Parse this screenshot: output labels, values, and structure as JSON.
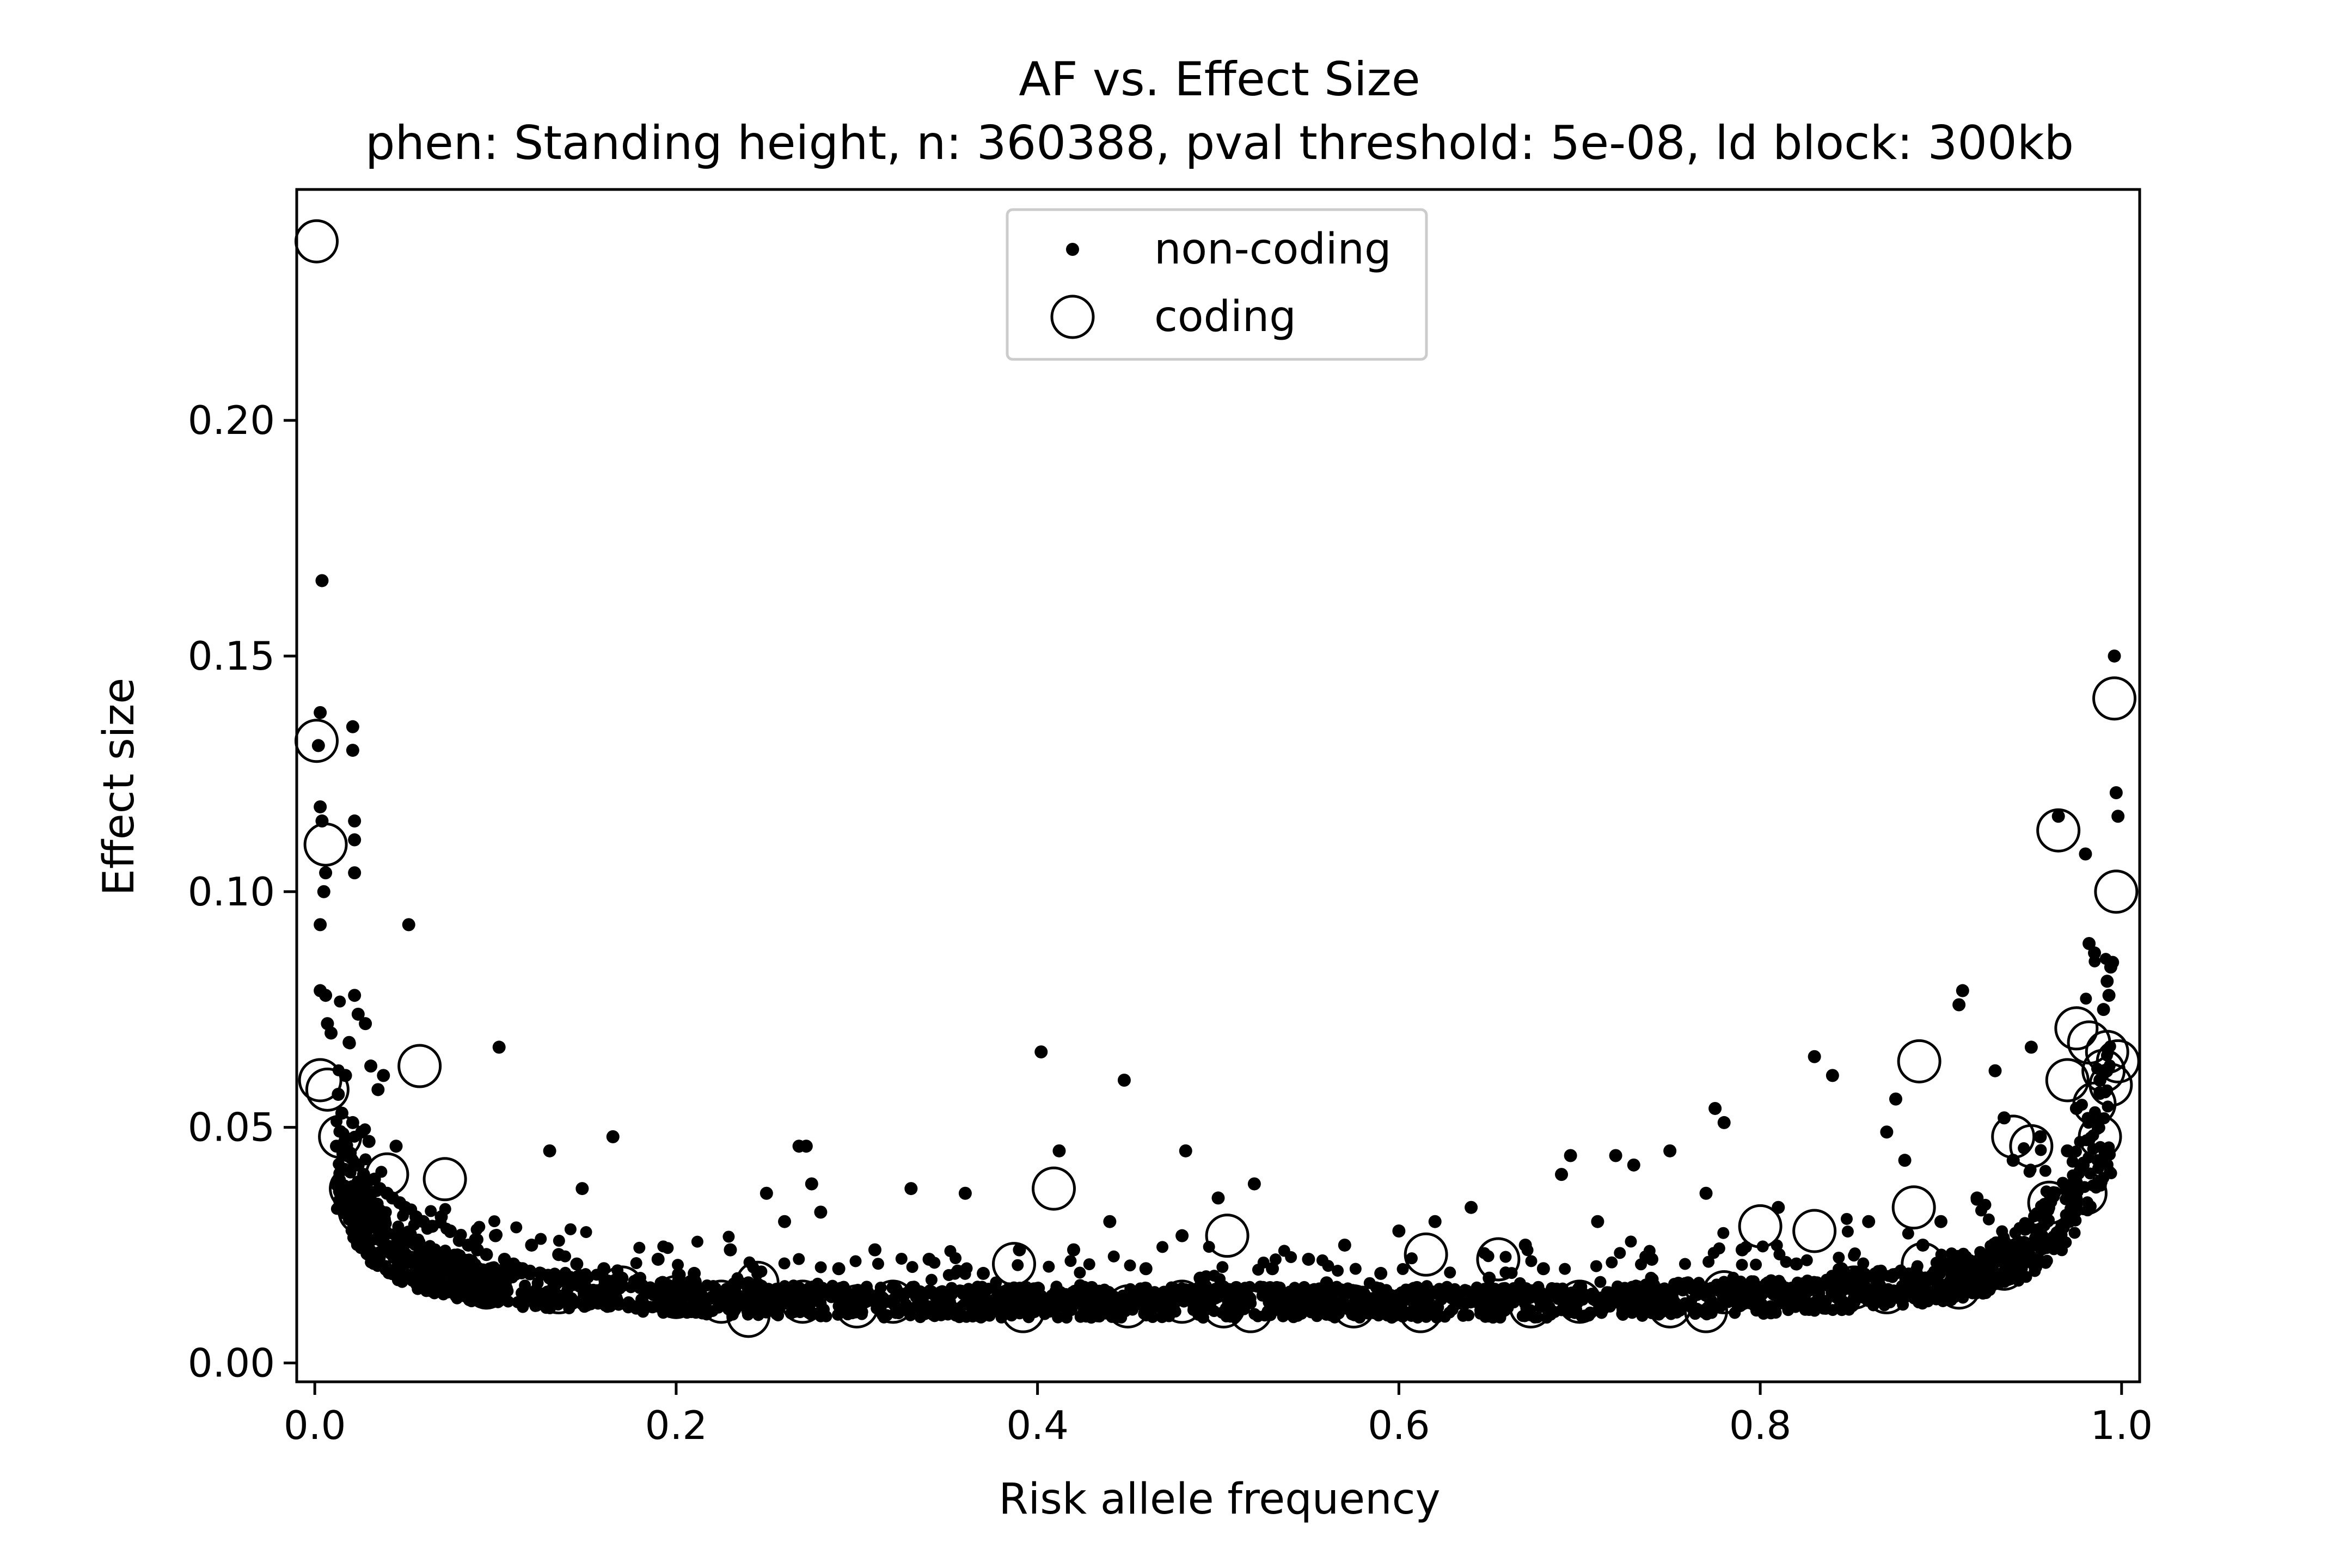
{
  "chart_data": {
    "type": "scatter",
    "title": "AF vs. Effect Size",
    "subtitle": "phen: Standing height, n: 360388, pval threshold: 5e-08, ld block: 300kb",
    "xlabel": "Risk allele frequency",
    "ylabel": "Effect size",
    "xlim": [
      -0.01,
      1.01
    ],
    "ylim": [
      -0.004,
      0.249
    ],
    "xticks": [
      0.0,
      0.2,
      0.4,
      0.6,
      0.8,
      1.0
    ],
    "xtick_labels": [
      "0.0",
      "0.2",
      "0.4",
      "0.6",
      "0.8",
      "1.0"
    ],
    "yticks": [
      0.0,
      0.05,
      0.1,
      0.15,
      0.2
    ],
    "ytick_labels": [
      "0.00",
      "0.05",
      "0.10",
      "0.15",
      "0.20"
    ],
    "grid": false,
    "legend_position": "top-center",
    "colors": {
      "marker": "#000000",
      "background": "#ffffff"
    },
    "series": [
      {
        "name": "non-coding",
        "marker": "dot",
        "points": [
          [
            0.004,
            0.166
          ],
          [
            0.003,
            0.138
          ],
          [
            0.002,
            0.131
          ],
          [
            0.021,
            0.135
          ],
          [
            0.021,
            0.13
          ],
          [
            0.022,
            0.115
          ],
          [
            0.022,
            0.111
          ],
          [
            0.003,
            0.118
          ],
          [
            0.004,
            0.115
          ],
          [
            0.006,
            0.104
          ],
          [
            0.005,
            0.1
          ],
          [
            0.003,
            0.093
          ],
          [
            0.022,
            0.104
          ],
          [
            0.052,
            0.093
          ],
          [
            0.102,
            0.067
          ],
          [
            0.003,
            0.079
          ],
          [
            0.006,
            0.078
          ],
          [
            0.007,
            0.072
          ],
          [
            0.009,
            0.07
          ],
          [
            0.019,
            0.068
          ],
          [
            0.022,
            0.078
          ],
          [
            0.024,
            0.074
          ],
          [
            0.028,
            0.072
          ],
          [
            0.031,
            0.063
          ],
          [
            0.017,
            0.061
          ],
          [
            0.035,
            0.058
          ],
          [
            0.038,
            0.061
          ],
          [
            0.013,
            0.057
          ],
          [
            0.015,
            0.053
          ],
          [
            0.021,
            0.051
          ],
          [
            0.026,
            0.049
          ],
          [
            0.03,
            0.047
          ],
          [
            0.045,
            0.046
          ],
          [
            0.012,
            0.046
          ],
          [
            0.018,
            0.044
          ],
          [
            0.024,
            0.042
          ],
          [
            0.027,
            0.04
          ],
          [
            0.033,
            0.039
          ],
          [
            0.036,
            0.037
          ],
          [
            0.04,
            0.036
          ],
          [
            0.043,
            0.035
          ],
          [
            0.047,
            0.034
          ],
          [
            0.05,
            0.033
          ],
          [
            0.056,
            0.031
          ],
          [
            0.06,
            0.03
          ],
          [
            0.065,
            0.029
          ],
          [
            0.07,
            0.031
          ],
          [
            0.075,
            0.028
          ],
          [
            0.08,
            0.026
          ],
          [
            0.085,
            0.025
          ],
          [
            0.09,
            0.024
          ],
          [
            0.095,
            0.023
          ],
          [
            0.1,
            0.027
          ],
          [
            0.105,
            0.022
          ],
          [
            0.11,
            0.021
          ],
          [
            0.115,
            0.02
          ],
          [
            0.12,
            0.025
          ],
          [
            0.125,
            0.019
          ],
          [
            0.13,
            0.018
          ],
          [
            0.135,
            0.023
          ],
          [
            0.14,
            0.017
          ],
          [
            0.145,
            0.021
          ],
          [
            0.15,
            0.016
          ],
          [
            0.155,
            0.015
          ],
          [
            0.165,
            0.048
          ],
          [
            0.13,
            0.045
          ],
          [
            0.148,
            0.037
          ],
          [
            0.16,
            0.02
          ],
          [
            0.17,
            0.018
          ],
          [
            0.18,
            0.016
          ],
          [
            0.19,
            0.022
          ],
          [
            0.2,
            0.015
          ],
          [
            0.21,
            0.019
          ],
          [
            0.22,
            0.014
          ],
          [
            0.23,
            0.024
          ],
          [
            0.24,
            0.017
          ],
          [
            0.25,
            0.036
          ],
          [
            0.26,
            0.03
          ],
          [
            0.268,
            0.046
          ],
          [
            0.272,
            0.046
          ],
          [
            0.275,
            0.038
          ],
          [
            0.28,
            0.032
          ],
          [
            0.29,
            0.02
          ],
          [
            0.3,
            0.015
          ],
          [
            0.31,
            0.024
          ],
          [
            0.32,
            0.016
          ],
          [
            0.33,
            0.037
          ],
          [
            0.34,
            0.022
          ],
          [
            0.35,
            0.014
          ],
          [
            0.36,
            0.036
          ],
          [
            0.37,
            0.019
          ],
          [
            0.38,
            0.015
          ],
          [
            0.39,
            0.024
          ],
          [
            0.402,
            0.066
          ],
          [
            0.412,
            0.045
          ],
          [
            0.42,
            0.024
          ],
          [
            0.43,
            0.016
          ],
          [
            0.44,
            0.03
          ],
          [
            0.448,
            0.06
          ],
          [
            0.46,
            0.02
          ],
          [
            0.47,
            0.015
          ],
          [
            0.48,
            0.027
          ],
          [
            0.482,
            0.045
          ],
          [
            0.49,
            0.018
          ],
          [
            0.5,
            0.035
          ],
          [
            0.51,
            0.016
          ],
          [
            0.52,
            0.038
          ],
          [
            0.53,
            0.02
          ],
          [
            0.54,
            0.014
          ],
          [
            0.55,
            0.022
          ],
          [
            0.56,
            0.017
          ],
          [
            0.57,
            0.025
          ],
          [
            0.58,
            0.015
          ],
          [
            0.59,
            0.019
          ],
          [
            0.6,
            0.028
          ],
          [
            0.61,
            0.016
          ],
          [
            0.62,
            0.03
          ],
          [
            0.63,
            0.014
          ],
          [
            0.64,
            0.033
          ],
          [
            0.65,
            0.018
          ],
          [
            0.66,
            0.015
          ],
          [
            0.67,
            0.025
          ],
          [
            0.68,
            0.02
          ],
          [
            0.69,
            0.04
          ],
          [
            0.695,
            0.044
          ],
          [
            0.7,
            0.016
          ],
          [
            0.71,
            0.03
          ],
          [
            0.72,
            0.044
          ],
          [
            0.73,
            0.042
          ],
          [
            0.74,
            0.022
          ],
          [
            0.75,
            0.045
          ],
          [
            0.76,
            0.017
          ],
          [
            0.77,
            0.036
          ],
          [
            0.775,
            0.054
          ],
          [
            0.78,
            0.051
          ],
          [
            0.79,
            0.024
          ],
          [
            0.8,
            0.016
          ],
          [
            0.81,
            0.033
          ],
          [
            0.82,
            0.021
          ],
          [
            0.83,
            0.065
          ],
          [
            0.84,
            0.061
          ],
          [
            0.845,
            0.02
          ],
          [
            0.85,
            0.017
          ],
          [
            0.86,
            0.03
          ],
          [
            0.87,
            0.049
          ],
          [
            0.875,
            0.056
          ],
          [
            0.88,
            0.043
          ],
          [
            0.89,
            0.025
          ],
          [
            0.9,
            0.03
          ],
          [
            0.91,
            0.076
          ],
          [
            0.912,
            0.079
          ],
          [
            0.92,
            0.035
          ],
          [
            0.93,
            0.062
          ],
          [
            0.935,
            0.052
          ],
          [
            0.94,
            0.043
          ],
          [
            0.95,
            0.067
          ],
          [
            0.955,
            0.048
          ],
          [
            0.96,
            0.036
          ],
          [
            0.965,
            0.116
          ],
          [
            0.97,
            0.045
          ],
          [
            0.975,
            0.054
          ],
          [
            0.98,
            0.108
          ],
          [
            0.982,
            0.089
          ],
          [
            0.985,
            0.087
          ],
          [
            0.988,
            0.06
          ],
          [
            0.99,
            0.075
          ],
          [
            0.992,
            0.081
          ],
          [
            0.994,
            0.084
          ],
          [
            0.996,
            0.15
          ],
          [
            0.997,
            0.121
          ],
          [
            0.998,
            0.116
          ],
          [
            0.995,
            0.085
          ],
          [
            0.993,
            0.078
          ]
        ],
        "band": [
          [
            0.012,
            0.04
          ],
          [
            0.02,
            0.033
          ],
          [
            0.03,
            0.027
          ],
          [
            0.045,
            0.022
          ],
          [
            0.06,
            0.019
          ],
          [
            0.08,
            0.017
          ],
          [
            0.1,
            0.015
          ],
          [
            0.15,
            0.014
          ],
          [
            0.2,
            0.013
          ],
          [
            0.3,
            0.012
          ],
          [
            0.4,
            0.012
          ],
          [
            0.5,
            0.012
          ],
          [
            0.6,
            0.012
          ],
          [
            0.7,
            0.012
          ],
          [
            0.8,
            0.013
          ],
          [
            0.85,
            0.014
          ],
          [
            0.9,
            0.016
          ],
          [
            0.93,
            0.019
          ],
          [
            0.95,
            0.023
          ],
          [
            0.965,
            0.028
          ],
          [
            0.975,
            0.034
          ],
          [
            0.985,
            0.042
          ],
          [
            0.992,
            0.05
          ]
        ]
      },
      {
        "name": "coding",
        "marker": "open-circle",
        "points": [
          [
            0.001,
            0.238
          ],
          [
            0.001,
            0.132
          ],
          [
            0.006,
            0.11
          ],
          [
            0.003,
            0.06
          ],
          [
            0.007,
            0.058
          ],
          [
            0.014,
            0.048
          ],
          [
            0.02,
            0.037
          ],
          [
            0.025,
            0.032
          ],
          [
            0.03,
            0.03
          ],
          [
            0.04,
            0.04
          ],
          [
            0.058,
            0.063
          ],
          [
            0.072,
            0.039
          ],
          [
            0.095,
            0.016
          ],
          [
            0.11,
            0.017
          ],
          [
            0.135,
            0.015
          ],
          [
            0.17,
            0.016
          ],
          [
            0.2,
            0.014
          ],
          [
            0.225,
            0.013
          ],
          [
            0.24,
            0.01
          ],
          [
            0.245,
            0.017
          ],
          [
            0.27,
            0.013
          ],
          [
            0.3,
            0.012
          ],
          [
            0.32,
            0.013
          ],
          [
            0.387,
            0.021
          ],
          [
            0.392,
            0.011
          ],
          [
            0.409,
            0.037
          ],
          [
            0.45,
            0.012
          ],
          [
            0.48,
            0.013
          ],
          [
            0.503,
            0.012
          ],
          [
            0.505,
            0.027
          ],
          [
            0.518,
            0.011
          ],
          [
            0.575,
            0.012
          ],
          [
            0.612,
            0.011
          ],
          [
            0.615,
            0.023
          ],
          [
            0.655,
            0.022
          ],
          [
            0.673,
            0.012
          ],
          [
            0.7,
            0.013
          ],
          [
            0.75,
            0.012
          ],
          [
            0.77,
            0.011
          ],
          [
            0.78,
            0.015
          ],
          [
            0.8,
            0.029
          ],
          [
            0.83,
            0.028
          ],
          [
            0.852,
            0.016
          ],
          [
            0.87,
            0.015
          ],
          [
            0.885,
            0.033
          ],
          [
            0.888,
            0.064
          ],
          [
            0.89,
            0.021
          ],
          [
            0.91,
            0.016
          ],
          [
            0.935,
            0.02
          ],
          [
            0.94,
            0.048
          ],
          [
            0.95,
            0.046
          ],
          [
            0.96,
            0.034
          ],
          [
            0.965,
            0.113
          ],
          [
            0.97,
            0.06
          ],
          [
            0.975,
            0.071
          ],
          [
            0.98,
            0.036
          ],
          [
            0.982,
            0.068
          ],
          [
            0.985,
            0.055
          ],
          [
            0.988,
            0.048
          ],
          [
            0.99,
            0.062
          ],
          [
            0.992,
            0.066
          ],
          [
            0.994,
            0.059
          ],
          [
            0.996,
            0.141
          ],
          [
            0.997,
            0.1
          ],
          [
            0.998,
            0.064
          ]
        ]
      }
    ]
  }
}
